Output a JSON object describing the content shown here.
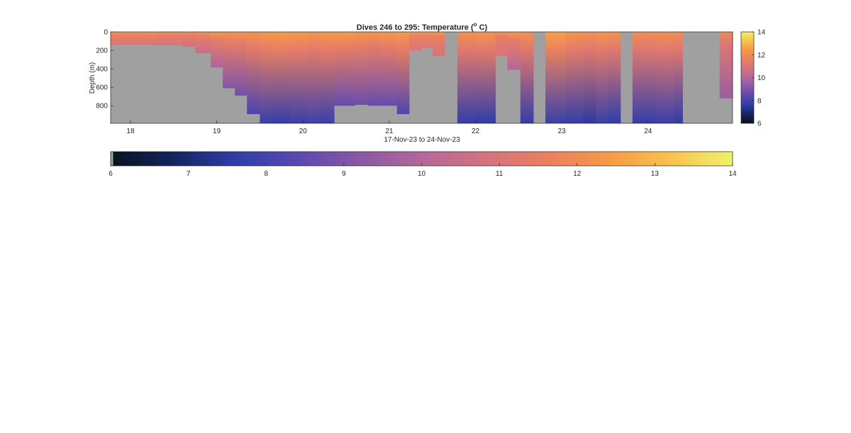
{
  "chart_data": {
    "type": "heatmap",
    "title": "Dives 246 to 295: Temperature (",
    "title_superscript": "o",
    "title_suffix": " C)",
    "ylabel": "Depth (m)",
    "xlabel": "17-Nov-23 to 24-Nov-23",
    "x_ticks": [
      "18",
      "19",
      "20",
      "21",
      "22",
      "23",
      "24"
    ],
    "y_ticks": [
      "0",
      "200",
      "400",
      "600",
      "800"
    ],
    "xlim_days": [
      17.77,
      24.98
    ],
    "ylim_depth_m": [
      0,
      990
    ],
    "grid": false,
    "colorbar_ticks": [
      "6",
      "8",
      "10",
      "12",
      "14"
    ],
    "horizontal_colorbar_ticks": [
      "6",
      "7",
      "8",
      "9",
      "10",
      "11",
      "12",
      "13",
      "14"
    ],
    "color_range": [
      6,
      14
    ],
    "missing_color": "#a0a0a0",
    "colormap": [
      "#06131f",
      "#14245c",
      "#2f3da8",
      "#5a48b0",
      "#8a58a6",
      "#b3679a",
      "#d4727e",
      "#ea7f62",
      "#f59a47",
      "#f8c24d",
      "#eef26a"
    ],
    "profiles": [
      {
        "x0": 17.77,
        "x1": 18.27,
        "max_depth_m": 140,
        "surface_temp": 12.2,
        "bottom_temp": 11.0
      },
      {
        "x0": 18.27,
        "x1": 18.6,
        "max_depth_m": 145,
        "surface_temp": 12.1,
        "bottom_temp": 10.9
      },
      {
        "x0": 18.6,
        "x1": 18.75,
        "max_depth_m": 160,
        "surface_temp": 12.0,
        "bottom_temp": 10.8
      },
      {
        "x0": 18.75,
        "x1": 18.93,
        "max_depth_m": 230,
        "surface_temp": 12.0,
        "bottom_temp": 10.5
      },
      {
        "x0": 18.93,
        "x1": 19.07,
        "max_depth_m": 385,
        "surface_temp": 12.0,
        "bottom_temp": 9.9
      },
      {
        "x0": 19.07,
        "x1": 19.21,
        "max_depth_m": 610,
        "surface_temp": 11.9,
        "bottom_temp": 9.1
      },
      {
        "x0": 19.21,
        "x1": 19.35,
        "max_depth_m": 690,
        "surface_temp": 11.9,
        "bottom_temp": 8.8
      },
      {
        "x0": 19.35,
        "x1": 19.5,
        "max_depth_m": 890,
        "surface_temp": 11.9,
        "bottom_temp": 8.1
      },
      {
        "x0": 19.5,
        "x1": 19.64,
        "max_depth_m": 990,
        "surface_temp": 12.0,
        "bottom_temp": 7.8
      },
      {
        "x0": 19.64,
        "x1": 19.85,
        "max_depth_m": 990,
        "surface_temp": 12.1,
        "bottom_temp": 7.7
      },
      {
        "x0": 19.85,
        "x1": 20.05,
        "max_depth_m": 990,
        "surface_temp": 12.0,
        "bottom_temp": 7.8
      },
      {
        "x0": 20.05,
        "x1": 20.2,
        "max_depth_m": 990,
        "surface_temp": 11.9,
        "bottom_temp": 7.9
      },
      {
        "x0": 20.2,
        "x1": 20.36,
        "max_depth_m": 990,
        "surface_temp": 12.0,
        "bottom_temp": 7.8
      },
      {
        "x0": 20.36,
        "x1": 20.6,
        "max_depth_m": 800,
        "surface_temp": 12.1,
        "bottom_temp": 8.6
      },
      {
        "x0": 20.6,
        "x1": 20.75,
        "max_depth_m": 790,
        "surface_temp": 12.0,
        "bottom_temp": 8.7
      },
      {
        "x0": 20.75,
        "x1": 20.9,
        "max_depth_m": 800,
        "surface_temp": 11.9,
        "bottom_temp": 8.6
      },
      {
        "x0": 20.9,
        "x1": 21.09,
        "max_depth_m": 800,
        "surface_temp": 12.0,
        "bottom_temp": 8.6
      },
      {
        "x0": 21.09,
        "x1": 21.23,
        "max_depth_m": 890,
        "surface_temp": 12.1,
        "bottom_temp": 8.2
      },
      {
        "x0": 21.23,
        "x1": 21.37,
        "max_depth_m": 200,
        "surface_temp": 12.2,
        "bottom_temp": 11.0
      },
      {
        "x0": 21.37,
        "x1": 21.5,
        "max_depth_m": 170,
        "surface_temp": 12.2,
        "bottom_temp": 11.1
      },
      {
        "x0": 21.5,
        "x1": 21.64,
        "max_depth_m": 260,
        "surface_temp": 12.1,
        "bottom_temp": 10.8
      },
      {
        "x0": 21.64,
        "x1": 21.79,
        "max_depth_m": 0,
        "surface_temp": 12.0,
        "bottom_temp": 12.0
      },
      {
        "x0": 21.79,
        "x1": 22.0,
        "max_depth_m": 990,
        "surface_temp": 11.8,
        "bottom_temp": 7.7
      },
      {
        "x0": 22.0,
        "x1": 22.23,
        "max_depth_m": 990,
        "surface_temp": 11.9,
        "bottom_temp": 7.6
      },
      {
        "x0": 22.23,
        "x1": 22.37,
        "max_depth_m": 260,
        "surface_temp": 12.0,
        "bottom_temp": 10.9
      },
      {
        "x0": 22.37,
        "x1": 22.52,
        "max_depth_m": 410,
        "surface_temp": 12.0,
        "bottom_temp": 10.0
      },
      {
        "x0": 22.52,
        "x1": 22.67,
        "max_depth_m": 990,
        "surface_temp": 11.8,
        "bottom_temp": 7.7
      },
      {
        "x0": 22.67,
        "x1": 22.81,
        "max_depth_m": 0,
        "surface_temp": 12.0,
        "bottom_temp": 12.0
      },
      {
        "x0": 22.81,
        "x1": 23.05,
        "max_depth_m": 990,
        "surface_temp": 12.2,
        "bottom_temp": 7.8
      },
      {
        "x0": 23.05,
        "x1": 23.25,
        "max_depth_m": 990,
        "surface_temp": 11.9,
        "bottom_temp": 7.7
      },
      {
        "x0": 23.25,
        "x1": 23.4,
        "max_depth_m": 990,
        "surface_temp": 11.8,
        "bottom_temp": 7.5
      },
      {
        "x0": 23.4,
        "x1": 23.54,
        "max_depth_m": 990,
        "surface_temp": 11.9,
        "bottom_temp": 7.8
      },
      {
        "x0": 23.54,
        "x1": 23.68,
        "max_depth_m": 990,
        "surface_temp": 11.8,
        "bottom_temp": 7.6
      },
      {
        "x0": 23.68,
        "x1": 23.82,
        "max_depth_m": 0,
        "surface_temp": 12.0,
        "bottom_temp": 12.0
      },
      {
        "x0": 23.82,
        "x1": 24.1,
        "max_depth_m": 990,
        "surface_temp": 11.7,
        "bottom_temp": 7.7
      },
      {
        "x0": 24.1,
        "x1": 24.3,
        "max_depth_m": 990,
        "surface_temp": 11.8,
        "bottom_temp": 7.8
      },
      {
        "x0": 24.3,
        "x1": 24.4,
        "max_depth_m": 990,
        "surface_temp": 11.7,
        "bottom_temp": 7.6
      },
      {
        "x0": 24.4,
        "x1": 24.83,
        "max_depth_m": 0,
        "surface_temp": 12.0,
        "bottom_temp": 12.0
      },
      {
        "x0": 24.83,
        "x1": 24.98,
        "max_depth_m": 720,
        "surface_temp": 11.6,
        "bottom_temp": 9.5
      }
    ]
  }
}
